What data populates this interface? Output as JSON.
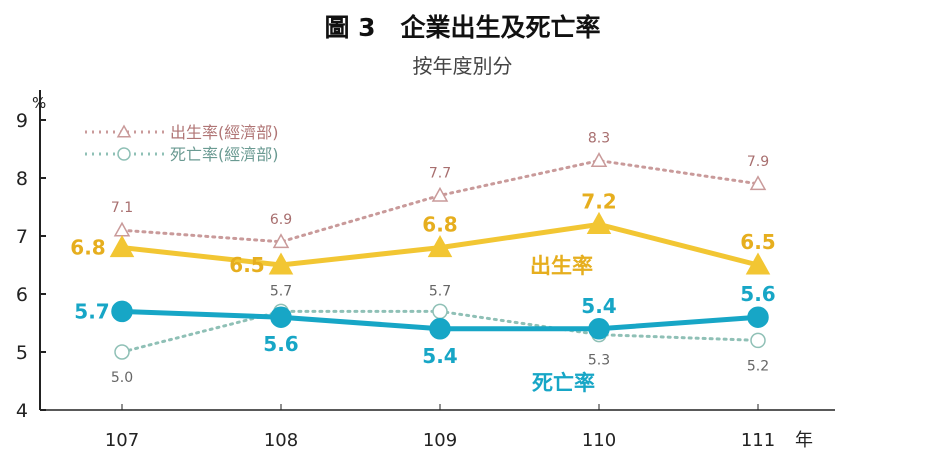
{
  "chart_data": {
    "type": "line",
    "title": "圖 3　企業出生及死亡率",
    "subtitle": "按年度別分",
    "ylabel": "%",
    "xlabel": "年",
    "categories": [
      "107",
      "108",
      "109",
      "110",
      "111"
    ],
    "ylim": [
      4,
      9
    ],
    "yticks": [
      4,
      5,
      6,
      7,
      8,
      9
    ],
    "grid": false,
    "legend_position": "top-left",
    "series": [
      {
        "name": "出生率",
        "values": [
          6.8,
          6.5,
          6.8,
          7.2,
          6.5
        ],
        "color": "#f2c633",
        "label_color": "#e6ae1e",
        "style": "solid",
        "marker": "triangle-filled"
      },
      {
        "name": "死亡率",
        "values": [
          5.7,
          5.6,
          5.4,
          5.4,
          5.6
        ],
        "color": "#17a6c6",
        "label_color": "#17a6c6",
        "style": "solid",
        "marker": "circle-filled"
      },
      {
        "name": "出生率(經濟部)",
        "values": [
          7.1,
          6.9,
          7.7,
          8.3,
          7.9
        ],
        "color": "#c99a9a",
        "label_color": "#a86f6f",
        "style": "dotted",
        "marker": "triangle-open"
      },
      {
        "name": "死亡率(經濟部)",
        "values": [
          5.0,
          5.7,
          5.7,
          5.3,
          5.2
        ],
        "color": "#8fc0b6",
        "label_color": "#666",
        "style": "dotted",
        "marker": "circle-open"
      }
    ]
  }
}
